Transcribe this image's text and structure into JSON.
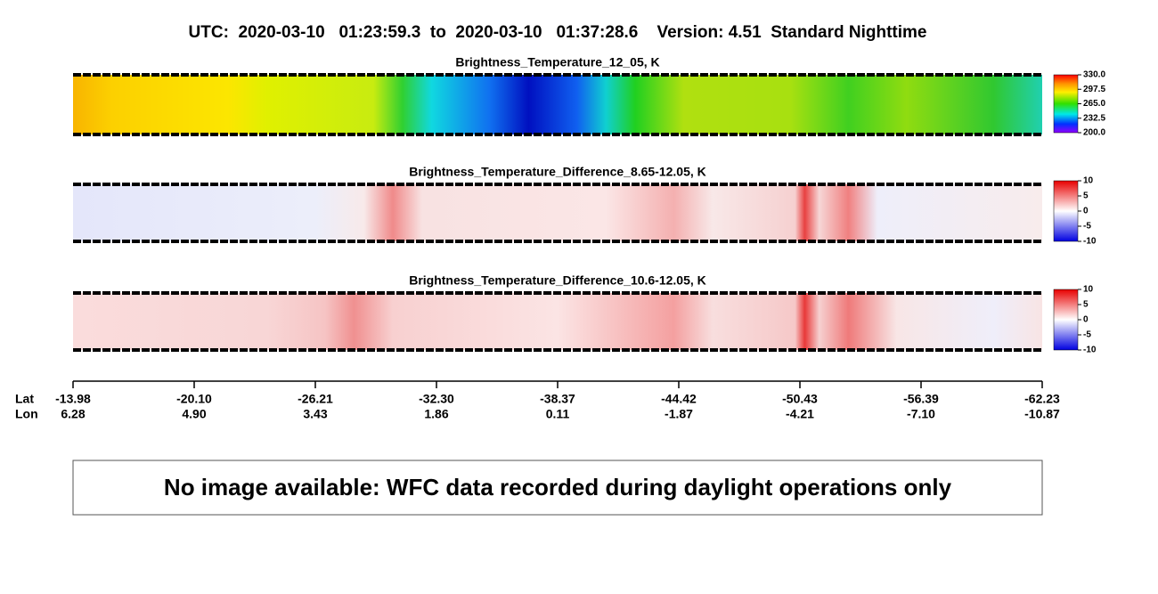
{
  "header": {
    "title": "UTC:  2020-03-10   01:23:59.3  to  2020-03-10   01:37:28.6    Version: 4.51  Standard Nighttime"
  },
  "panels": [
    {
      "title": "Brightness_Temperature_12_05, K",
      "colorbar_labels": [
        "330.0",
        "297.5",
        "265.0",
        "232.5",
        "200.0"
      ]
    },
    {
      "title": "Brightness_Temperature_Difference_8.65-12.05, K",
      "colorbar_labels": [
        "10",
        "5",
        "0",
        "-5",
        "-10"
      ]
    },
    {
      "title": "Brightness_Temperature_Difference_10.6-12.05, K",
      "colorbar_labels": [
        "10",
        "5",
        "0",
        "-5",
        "-10"
      ]
    }
  ],
  "axis": {
    "lat_label": "Lat",
    "lon_label": "Lon",
    "lat": [
      "-13.98",
      "-20.10",
      "-26.21",
      "-32.30",
      "-38.37",
      "-44.42",
      "-50.43",
      "-56.39",
      "-62.23"
    ],
    "lon": [
      "6.28",
      "4.90",
      "3.43",
      "1.86",
      "0.11",
      "-1.87",
      "-4.21",
      "-7.10",
      "-10.87"
    ]
  },
  "message": "No image available: WFC data recorded during daylight operations only"
}
